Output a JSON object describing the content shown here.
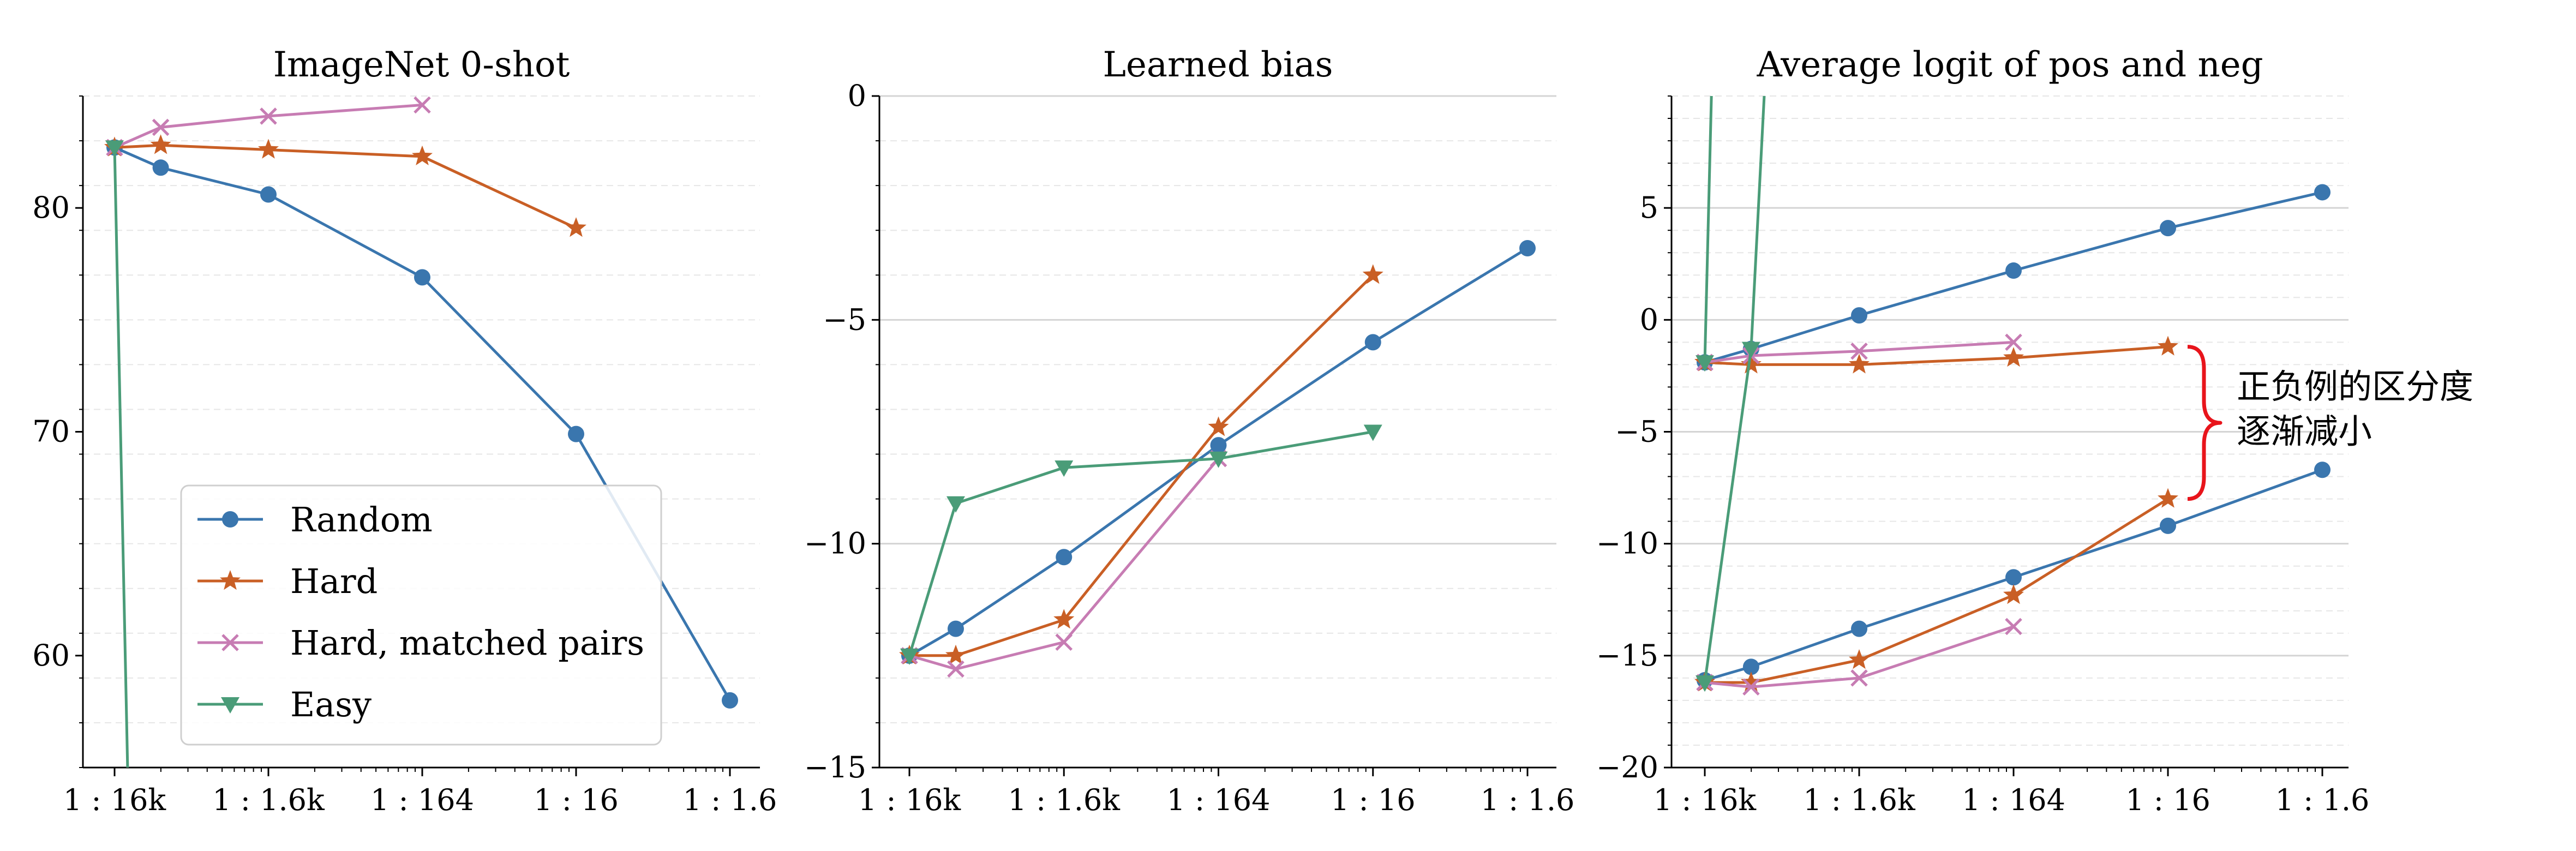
{
  "colors": {
    "Random": "#3a76ae",
    "Hard": "#c95f25",
    "Hard, matched pairs": "#c77cb3",
    "Easy": "#4a9c78",
    "brace": "#e8141b"
  },
  "chart_data": [
    {
      "type": "line",
      "title": "ImageNet 0-shot",
      "xlabel": "",
      "ylabel": "",
      "categories": [
        "1 : 16k",
        "1 : 1.6k",
        "1 : 164",
        "1 : 16",
        "1 : 1.6"
      ],
      "ylim": [
        55,
        85
      ],
      "yticks": [
        60,
        70,
        80
      ],
      "grid": true,
      "legend_placement": "lower-center",
      "legend": [
        "Random",
        "Hard",
        "Hard, matched pairs",
        "Easy"
      ],
      "series": [
        {
          "name": "Random",
          "marker": "circle",
          "x": [
            0,
            0.3,
            1,
            2,
            3,
            4
          ],
          "y": [
            82.7,
            81.8,
            80.6,
            76.9,
            69.9,
            58.0
          ]
        },
        {
          "name": "Hard",
          "marker": "star",
          "x": [
            0,
            0.3,
            1,
            2,
            3
          ],
          "y": [
            82.7,
            82.8,
            82.6,
            82.3,
            79.1
          ]
        },
        {
          "name": "Hard, matched pairs",
          "marker": "x",
          "x": [
            0,
            0.3,
            1,
            2
          ],
          "y": [
            82.7,
            83.6,
            84.1,
            84.6
          ]
        },
        {
          "name": "Easy",
          "marker": "triangle-down",
          "x": [
            0,
            0.1
          ],
          "y": [
            82.7,
            50.0
          ]
        }
      ]
    },
    {
      "type": "line",
      "title": "Learned bias",
      "xlabel": "",
      "ylabel": "",
      "categories": [
        "1 : 16k",
        "1 : 1.6k",
        "1 : 164",
        "1 : 16",
        "1 : 1.6"
      ],
      "ylim": [
        -15,
        0
      ],
      "yticks": [
        0,
        -5,
        -10,
        -15
      ],
      "grid": true,
      "series": [
        {
          "name": "Random",
          "marker": "circle",
          "x": [
            0,
            0.3,
            1,
            2,
            3,
            4
          ],
          "y": [
            -12.5,
            -11.9,
            -10.3,
            -7.8,
            -5.5,
            -3.4
          ]
        },
        {
          "name": "Hard",
          "marker": "star",
          "x": [
            0,
            0.3,
            1,
            2,
            3
          ],
          "y": [
            -12.5,
            -12.5,
            -11.7,
            -7.4,
            -4.0
          ]
        },
        {
          "name": "Hard, matched pairs",
          "marker": "x",
          "x": [
            0,
            0.3,
            1,
            2
          ],
          "y": [
            -12.5,
            -12.8,
            -12.2,
            -8.1
          ]
        },
        {
          "name": "Easy",
          "marker": "triangle-down",
          "x": [
            0,
            0.3,
            1,
            2,
            3
          ],
          "y": [
            -12.5,
            -9.1,
            -8.3,
            -8.1,
            -7.5
          ]
        }
      ]
    },
    {
      "type": "line",
      "title": "Average logit of pos and neg",
      "xlabel": "",
      "ylabel": "",
      "categories": [
        "1 : 16k",
        "1 : 1.6k",
        "1 : 164",
        "1 : 16",
        "1 : 1.6"
      ],
      "ylim": [
        -20,
        10
      ],
      "yticks": [
        5,
        0,
        -5,
        -10,
        -15,
        -20
      ],
      "grid": true,
      "annotation": "正负例的区分度\n逐渐减小",
      "series": [
        {
          "name": "Random",
          "marker": "circle",
          "x": [
            0,
            0.3,
            1,
            2,
            3,
            4
          ],
          "y": [
            -1.9,
            -1.3,
            0.2,
            2.2,
            4.1,
            5.7
          ]
        },
        {
          "name": "Random",
          "marker": "circle",
          "x": [
            0,
            0.3,
            1,
            2,
            3,
            4
          ],
          "y": [
            -16.1,
            -15.5,
            -13.8,
            -11.5,
            -9.2,
            -6.7
          ]
        },
        {
          "name": "Hard",
          "marker": "star",
          "x": [
            0,
            0.3,
            1,
            2,
            3
          ],
          "y": [
            -1.9,
            -2.0,
            -2.0,
            -1.7,
            -1.2
          ]
        },
        {
          "name": "Hard",
          "marker": "star",
          "x": [
            0,
            0.3,
            1,
            2,
            3
          ],
          "y": [
            -16.2,
            -16.2,
            -15.2,
            -12.3,
            -8.0
          ]
        },
        {
          "name": "Hard, matched pairs",
          "marker": "x",
          "x": [
            0,
            0.3,
            1,
            2
          ],
          "y": [
            -1.9,
            -1.6,
            -1.4,
            -1.0
          ]
        },
        {
          "name": "Hard, matched pairs",
          "marker": "x",
          "x": [
            0,
            0.3,
            1,
            2
          ],
          "y": [
            -16.2,
            -16.4,
            -16.0,
            -13.7
          ]
        },
        {
          "name": "Easy",
          "marker": "triangle-down",
          "x": [
            0,
            0.05
          ],
          "y": [
            -1.9,
            12
          ]
        },
        {
          "name": "Easy",
          "marker": "triangle-down",
          "x": [
            0,
            0.3,
            0.4
          ],
          "y": [
            -16.2,
            -1.3,
            12
          ]
        }
      ]
    }
  ]
}
